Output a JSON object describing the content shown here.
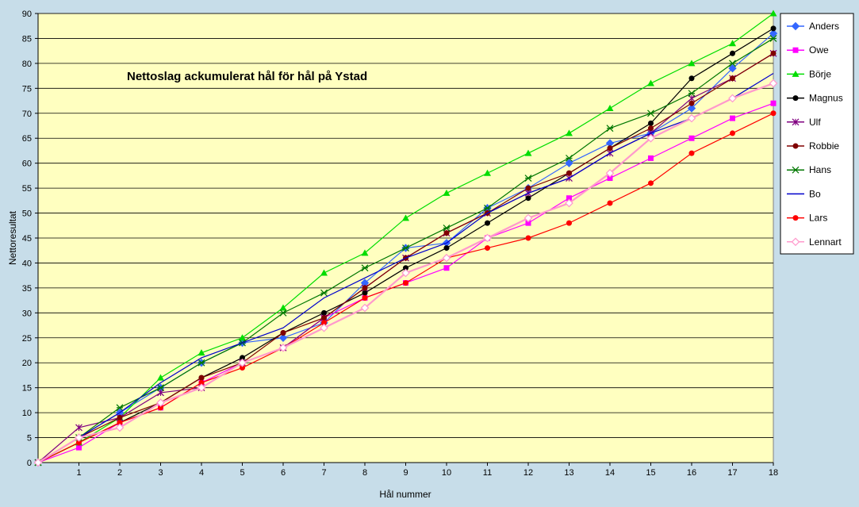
{
  "chart_data": {
    "type": "line",
    "title": "Nettoslag ackumulerat hål för hål på Ystad",
    "xlabel": "Hål nummer",
    "ylabel": "Nettoresultat",
    "x": [
      0,
      1,
      2,
      3,
      4,
      5,
      6,
      7,
      8,
      9,
      10,
      11,
      12,
      13,
      14,
      15,
      16,
      17,
      18
    ],
    "xticks": [
      1,
      2,
      3,
      4,
      5,
      6,
      7,
      8,
      9,
      10,
      11,
      12,
      13,
      14,
      15,
      16,
      17,
      18
    ],
    "ylim": [
      0,
      90
    ],
    "yticks": [
      0,
      5,
      10,
      15,
      20,
      25,
      30,
      35,
      40,
      45,
      50,
      55,
      60,
      65,
      70,
      75,
      80,
      85,
      90
    ],
    "grid": true,
    "legend_position": "right",
    "plot_background": "#ffffc0",
    "series": [
      {
        "name": "Anders",
        "color": "#3366ff",
        "marker": "diamond",
        "values": [
          0,
          5,
          10,
          15,
          20,
          24,
          25,
          28,
          36,
          43,
          44,
          51,
          55,
          60,
          64,
          66,
          71,
          79,
          86
        ]
      },
      {
        "name": "Owe",
        "color": "#ff00ff",
        "marker": "square",
        "values": [
          0,
          3,
          8,
          11,
          16,
          20,
          23,
          29,
          33,
          36,
          39,
          45,
          48,
          53,
          57,
          61,
          65,
          69,
          72
        ]
      },
      {
        "name": "Börje",
        "color": "#00dd00",
        "marker": "triangle",
        "values": [
          0,
          4,
          9,
          17,
          22,
          25,
          31,
          38,
          42,
          49,
          54,
          58,
          62,
          66,
          71,
          76,
          80,
          84,
          90
        ]
      },
      {
        "name": "Magnus",
        "color": "#000000",
        "marker": "circle",
        "values": [
          0,
          4,
          8,
          12,
          17,
          21,
          26,
          30,
          34,
          39,
          43,
          48,
          53,
          58,
          63,
          68,
          77,
          82,
          87
        ]
      },
      {
        "name": "Ulf",
        "color": "#800080",
        "marker": "star",
        "values": [
          0,
          7,
          9,
          14,
          15,
          20,
          23,
          29,
          35,
          41,
          46,
          50,
          54,
          57,
          62,
          66,
          73,
          77,
          82
        ]
      },
      {
        "name": "Robbie",
        "color": "#800000",
        "marker": "circle",
        "values": [
          0,
          5,
          9,
          12,
          17,
          20,
          26,
          29,
          35,
          41,
          46,
          50,
          55,
          58,
          63,
          67,
          72,
          77,
          82
        ]
      },
      {
        "name": "Hans",
        "color": "#007700",
        "marker": "asterisk",
        "values": [
          0,
          5,
          11,
          15,
          20,
          24,
          30,
          34,
          39,
          43,
          47,
          51,
          57,
          61,
          67,
          70,
          74,
          80,
          85
        ]
      },
      {
        "name": "Bo",
        "color": "#0000cc",
        "marker": "none",
        "values": [
          0,
          5,
          10,
          16,
          21,
          24,
          27,
          33,
          37,
          41,
          44,
          50,
          54,
          57,
          62,
          66,
          69,
          73,
          78
        ]
      },
      {
        "name": "Lars",
        "color": "#ff0000",
        "marker": "circle",
        "values": [
          0,
          4,
          8,
          11,
          16,
          19,
          23,
          28,
          33,
          36,
          41,
          43,
          45,
          48,
          52,
          56,
          62,
          66,
          70
        ]
      },
      {
        "name": "Lennart",
        "color": "#ff99cc",
        "marker": "diamond-open",
        "values": [
          0,
          5,
          7,
          12,
          15,
          20,
          23,
          27,
          31,
          38,
          41,
          45,
          49,
          52,
          58,
          65,
          69,
          73,
          76
        ]
      }
    ]
  }
}
